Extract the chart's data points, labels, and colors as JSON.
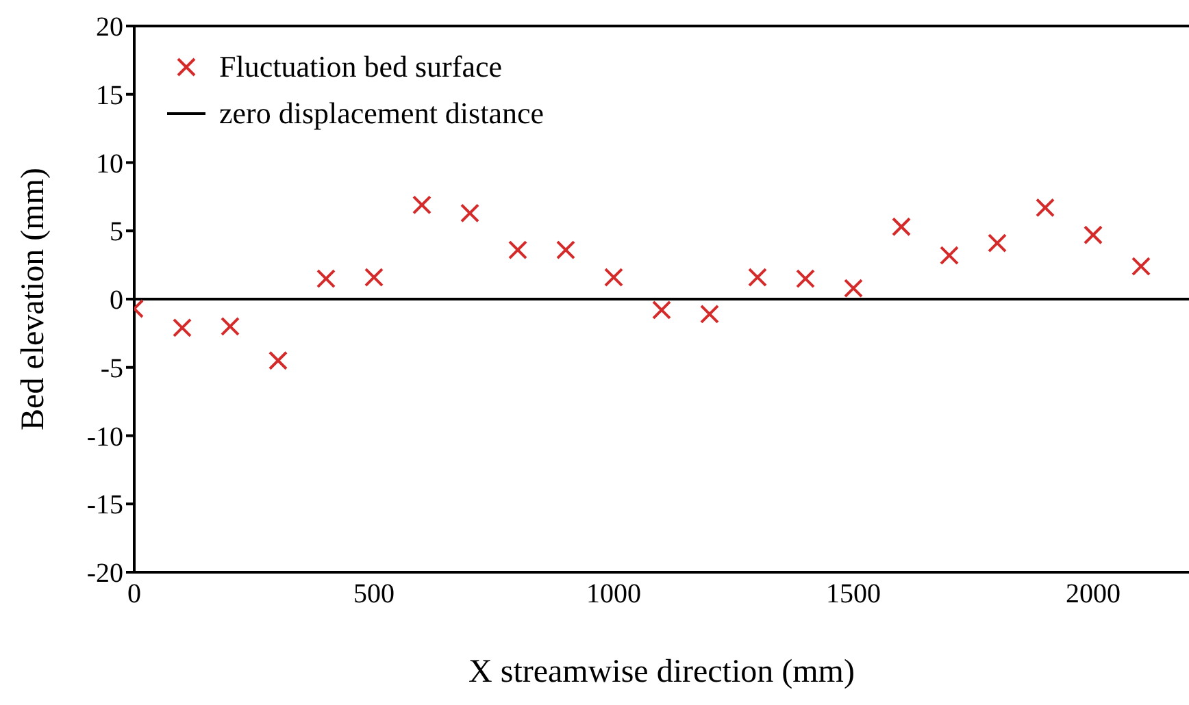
{
  "chart_data": {
    "type": "scatter",
    "xlabel": "X streamwise direction (mm)",
    "ylabel": "Bed elevation (mm)",
    "x": [
      0,
      100,
      200,
      300,
      400,
      500,
      600,
      700,
      800,
      900,
      1000,
      1100,
      1200,
      1300,
      1400,
      1500,
      1600,
      1700,
      1800,
      1900,
      2000,
      2100
    ],
    "series": [
      {
        "name": "Fluctuation bed surface",
        "color": "#d42a2a",
        "marker": "cross",
        "values": [
          -0.7,
          -2.1,
          -2.0,
          -4.5,
          1.5,
          1.6,
          6.9,
          6.3,
          3.6,
          3.6,
          1.6,
          -0.8,
          -1.1,
          1.6,
          1.5,
          0.8,
          5.3,
          3.2,
          4.1,
          6.7,
          4.7,
          2.4
        ]
      },
      {
        "name": "zero displacement distance",
        "type": "line",
        "color": "#000000",
        "marker": "none",
        "line_style": "solid",
        "x": [
          0,
          2200
        ],
        "values": [
          0,
          0
        ]
      }
    ],
    "xlim": [
      0,
      2200
    ],
    "xticks": [
      0,
      500,
      1000,
      1500,
      2000
    ],
    "ylim": [
      -20,
      20
    ],
    "yticks": [
      -20,
      -15,
      -10,
      -5,
      0,
      5,
      10,
      15,
      20
    ],
    "grid": false,
    "legend": "top left"
  }
}
